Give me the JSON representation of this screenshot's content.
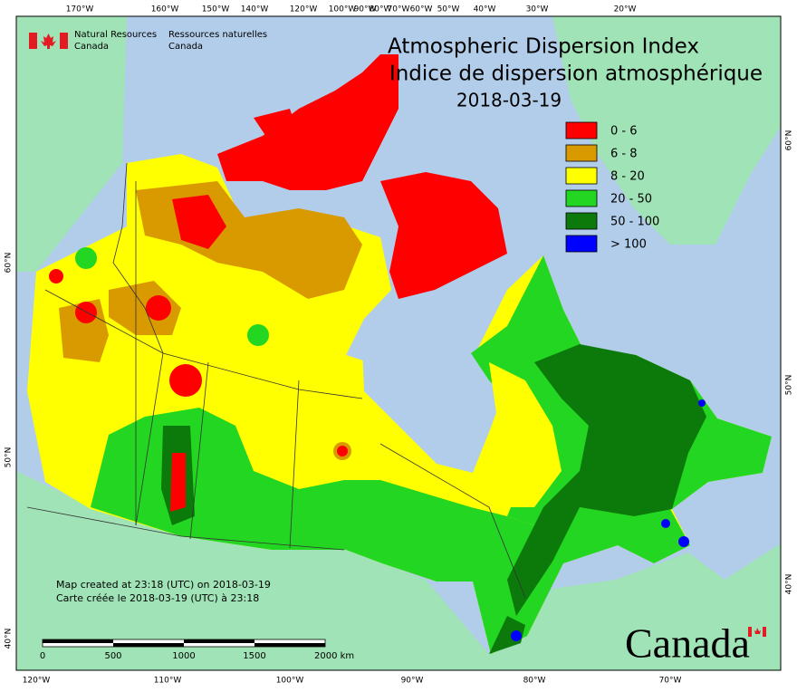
{
  "header": {
    "agency_en_1": "Natural Resources",
    "agency_en_2": "Canada",
    "agency_fr_1": "Ressources naturelles",
    "agency_fr_2": "Canada"
  },
  "title": {
    "en": "Atmospheric Dispersion Index",
    "fr": "Indice de dispersion atmosphérique",
    "date": "2018-03-19"
  },
  "legend": {
    "items": [
      {
        "label": "0 - 6",
        "color": "#ff0000"
      },
      {
        "label": "6 - 8",
        "color": "#d99a00"
      },
      {
        "label": "8 - 20",
        "color": "#ffff00"
      },
      {
        "label": "20 - 50",
        "color": "#22d622"
      },
      {
        "label": "50 - 100",
        "color": "#0b7a0b"
      },
      {
        "label": "> 100",
        "color": "#0000ff"
      }
    ]
  },
  "graticule": {
    "top": [
      "170°W",
      "160°W",
      "150°W",
      "140°W",
      "120°W",
      "100°W",
      "90°W",
      "80°W",
      "70°W",
      "60°W",
      "50°W",
      "40°W",
      "30°W",
      "20°W"
    ],
    "bottom": [
      "120°W",
      "110°W",
      "100°W",
      "90°W",
      "80°W",
      "70°W"
    ],
    "left": [
      "60°N",
      "50°N",
      "40°N"
    ],
    "right": [
      "60°N",
      "50°N",
      "40°N"
    ]
  },
  "footer": {
    "created_en": "Map created at 23:18 (UTC) on 2018-03-19",
    "created_fr": "Carte créée le 2018-03-19 (UTC) à 23:18"
  },
  "scale_bar": {
    "labels": [
      "0",
      "500",
      "1000",
      "1500",
      "2000  km"
    ]
  },
  "wordmark": "Canada"
}
